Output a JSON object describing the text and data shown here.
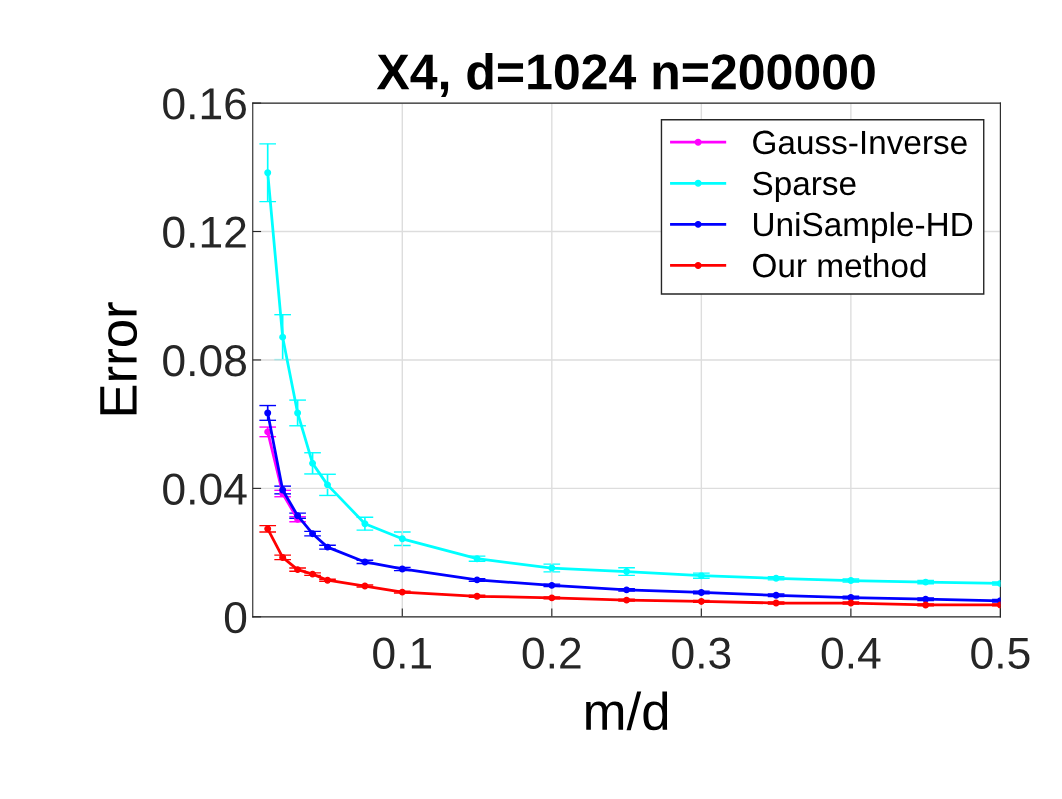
{
  "chart_data": {
    "type": "line",
    "title": "X4, d=1024 n=200000",
    "xlabel": "m/d",
    "ylabel": "Error",
    "x": [
      0.01,
      0.02,
      0.03,
      0.04,
      0.05,
      0.075,
      0.1,
      0.15,
      0.2,
      0.25,
      0.3,
      0.35,
      0.4,
      0.45,
      0.5
    ],
    "series": [
      {
        "name": "Gauss-Inverse",
        "color": "#ff00ff",
        "values": [
          0.0576,
          0.0384,
          0.0304,
          null,
          null,
          null,
          null,
          null,
          null,
          null,
          null,
          null,
          null,
          null,
          null
        ],
        "errors": [
          0.0015,
          0.001,
          0.0008,
          null,
          null,
          null,
          null,
          null,
          null,
          null,
          null,
          null,
          null,
          null,
          null
        ]
      },
      {
        "name": "Sparse",
        "color": "#00ffff",
        "values": [
          0.1383,
          0.0871,
          0.0635,
          0.0478,
          0.0411,
          0.029,
          0.0243,
          0.0181,
          0.0152,
          0.0141,
          0.0128,
          0.012,
          0.0113,
          0.0108,
          0.0104
        ],
        "errors": [
          0.009,
          0.007,
          0.004,
          0.0033,
          0.0033,
          0.002,
          0.0021,
          0.0008,
          0.0012,
          0.0012,
          0.0008,
          0.0005,
          0.0005,
          0.0005,
          0.0005
        ]
      },
      {
        "name": "UniSample-HD",
        "color": "#0000ff",
        "values": [
          0.0635,
          0.0395,
          0.0315,
          0.0259,
          0.0217,
          0.0171,
          0.0149,
          0.0115,
          0.0098,
          0.0084,
          0.0076,
          0.0067,
          0.006,
          0.0055,
          0.005
        ],
        "errors": [
          0.0023,
          0.0012,
          0.0008,
          0.0007,
          0.0006,
          0.0005,
          0.0005,
          0.0004,
          0.0004,
          0.0004,
          0.0004,
          0.0004,
          0.0004,
          0.0004,
          0.0004
        ]
      },
      {
        "name": "Our method",
        "color": "#ff0000",
        "values": [
          0.0274,
          0.0185,
          0.0147,
          0.0133,
          0.0114,
          0.0096,
          0.0077,
          0.0064,
          0.0059,
          0.0052,
          0.0048,
          0.0043,
          0.0043,
          0.0037,
          0.0037
        ],
        "errors": [
          0.001,
          0.0007,
          0.0005,
          0.0004,
          0.0003,
          0.0003,
          0.0003,
          0.0003,
          0.0003,
          0.0003,
          0.0003,
          0.0003,
          0.0003,
          0.0003,
          0.0003
        ]
      }
    ],
    "xlim": [
      0,
      0.5
    ],
    "xticks": [
      0.1,
      0.2,
      0.3,
      0.4,
      0.5
    ],
    "ylim": [
      0,
      0.16
    ],
    "yticks": [
      0,
      0.04,
      0.08,
      0.12,
      0.16
    ],
    "grid": true,
    "legend": "top right",
    "marker": "circle",
    "line_style": "solid"
  }
}
